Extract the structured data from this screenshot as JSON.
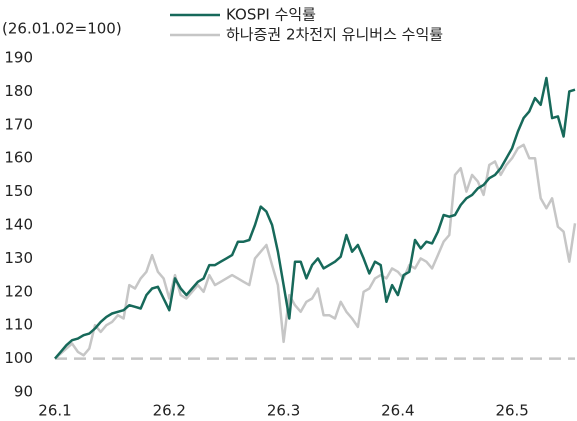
{
  "chart_data": {
    "type": "line",
    "subtitle": "(26.01.02=100)",
    "categories": [
      "26.1",
      null,
      null,
      null,
      null,
      null,
      null,
      null,
      null,
      null,
      null,
      null,
      null,
      null,
      null,
      null,
      null,
      null,
      null,
      null,
      "26.2",
      null,
      null,
      null,
      null,
      null,
      null,
      null,
      null,
      null,
      null,
      null,
      null,
      null,
      null,
      null,
      null,
      null,
      null,
      null,
      "26.3",
      null,
      null,
      null,
      null,
      null,
      null,
      null,
      null,
      null,
      null,
      null,
      null,
      null,
      null,
      null,
      null,
      null,
      null,
      null,
      "26.4",
      null,
      null,
      null,
      null,
      null,
      null,
      null,
      null,
      null,
      null,
      null,
      null,
      null,
      null,
      null,
      null,
      null,
      null,
      null,
      "26.5",
      null,
      null,
      null,
      null,
      null,
      null,
      null,
      null,
      null,
      null,
      null
    ],
    "series": [
      {
        "name": "KOSPI 수익률",
        "color": "#17695a",
        "values": [
          100,
          102,
          104,
          105.5,
          106,
          107,
          107.5,
          109,
          111,
          112.5,
          113.5,
          114,
          114.5,
          116,
          115.5,
          115,
          119,
          121,
          121.5,
          118,
          114.5,
          124,
          121,
          119,
          121,
          123,
          124,
          128,
          128,
          129,
          130,
          131,
          135,
          135,
          135.5,
          140,
          145.5,
          144,
          140,
          132,
          122,
          112,
          129,
          129,
          124,
          128,
          130,
          127,
          128,
          129,
          130.5,
          137,
          132,
          134,
          130,
          125.5,
          129,
          128,
          117,
          122,
          119,
          125,
          126,
          135.5,
          133,
          135,
          134.5,
          138,
          143,
          142.5,
          143,
          146,
          148,
          149,
          151,
          152,
          154,
          155,
          157,
          160,
          163,
          168,
          172,
          174,
          178,
          176,
          184,
          172,
          172.5,
          166.5,
          180,
          180.5
        ]
      },
      {
        "name": "하나증권 2차전지 유니버스 수익률",
        "color": "#c6c6c6",
        "values": [
          100,
          101.5,
          103,
          104.5,
          102,
          101,
          103,
          110,
          108,
          110,
          111,
          113,
          112,
          122,
          121,
          124,
          126,
          131,
          126,
          124,
          118,
          125,
          119,
          118,
          120,
          122,
          120,
          125,
          122,
          123,
          124,
          125,
          124,
          123,
          122,
          130,
          132,
          134,
          128,
          122,
          105,
          119,
          116,
          114,
          117,
          118,
          121,
          113,
          113,
          112,
          117,
          114,
          112,
          109.5,
          120,
          121,
          124,
          125,
          124,
          127,
          126,
          124,
          128,
          127,
          130,
          129,
          127,
          131,
          135,
          137,
          155,
          157,
          150,
          155,
          153,
          149,
          158,
          159,
          155,
          158,
          160,
          163,
          164,
          160,
          160,
          148,
          145,
          148,
          139.5,
          138,
          129,
          140.5
        ]
      }
    ],
    "baseline": 100,
    "ylim": [
      90,
      190
    ],
    "yticks": [
      90,
      100,
      110,
      120,
      130,
      140,
      150,
      160,
      170,
      180,
      190
    ]
  }
}
